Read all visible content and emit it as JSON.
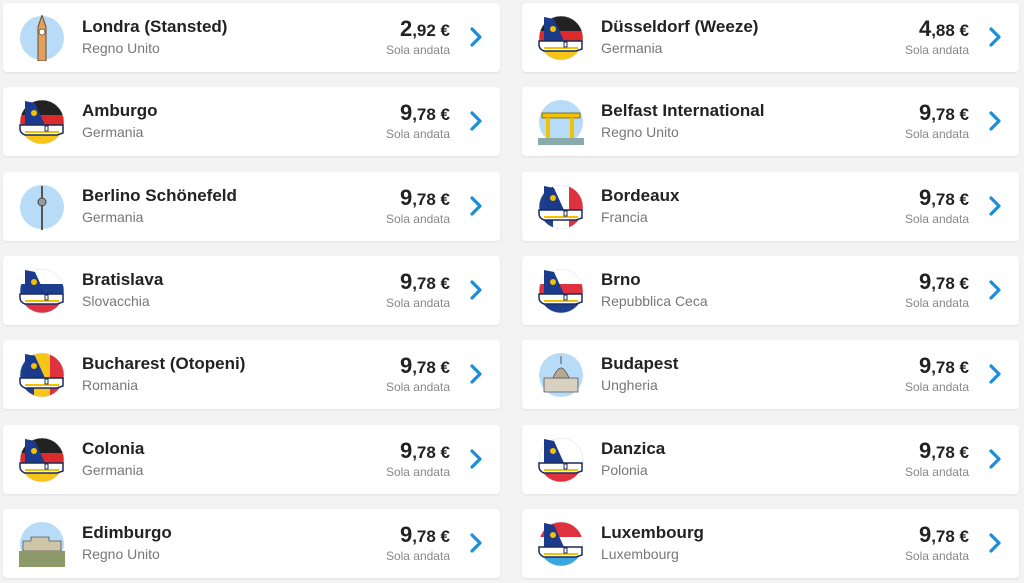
{
  "one_way_label": "Sola andata",
  "accent_color": "#1a8ddb",
  "destinations": [
    {
      "city": "Londra (Stansted)",
      "country": "Regno Unito",
      "price_int": "2",
      "price_dec": ",92 €",
      "icon": "big-ben-icon"
    },
    {
      "city": "Düsseldorf (Weeze)",
      "country": "Germania",
      "price_int": "4",
      "price_dec": ",88 €",
      "icon": "plane-tail-flag-icon",
      "flag_colors": [
        "#222222",
        "#dd2a2a",
        "#f5c518"
      ]
    },
    {
      "city": "Amburgo",
      "country": "Germania",
      "price_int": "9",
      "price_dec": ",78 €",
      "icon": "plane-tail-flag-icon",
      "flag_colors": [
        "#222222",
        "#dd2a2a",
        "#f5c518"
      ]
    },
    {
      "city": "Belfast International",
      "country": "Regno Unito",
      "price_int": "9",
      "price_dec": ",78 €",
      "icon": "harland-wolff-cranes-icon"
    },
    {
      "city": "Berlino Schönefeld",
      "country": "Germania",
      "price_int": "9",
      "price_dec": ",78 €",
      "icon": "tv-tower-icon"
    },
    {
      "city": "Bordeaux",
      "country": "Francia",
      "price_int": "9",
      "price_dec": ",78 €",
      "icon": "plane-tail-flag-icon",
      "flag_colors": [
        "#1d3f8f",
        "#ffffff",
        "#e0313e"
      ],
      "vertical": true
    },
    {
      "city": "Bratislava",
      "country": "Slovacchia",
      "price_int": "9",
      "price_dec": ",78 €",
      "icon": "plane-tail-flag-icon",
      "flag_colors": [
        "#ffffff",
        "#1d3f8f",
        "#e0313e"
      ]
    },
    {
      "city": "Brno",
      "country": "Repubblica Ceca",
      "price_int": "9",
      "price_dec": ",78 €",
      "icon": "plane-tail-flag-icon",
      "flag_colors": [
        "#ffffff",
        "#e0313e",
        "#1d3f8f"
      ]
    },
    {
      "city": "Bucharest (Otopeni)",
      "country": "Romania",
      "price_int": "9",
      "price_dec": ",78 €",
      "icon": "plane-tail-flag-icon",
      "flag_colors": [
        "#1d3f8f",
        "#f5c518",
        "#e0313e"
      ],
      "vertical": true
    },
    {
      "city": "Budapest",
      "country": "Ungheria",
      "price_int": "9",
      "price_dec": ",78 €",
      "icon": "parliament-icon"
    },
    {
      "city": "Colonia",
      "country": "Germania",
      "price_int": "9",
      "price_dec": ",78 €",
      "icon": "plane-tail-flag-icon",
      "flag_colors": [
        "#222222",
        "#dd2a2a",
        "#f5c518"
      ]
    },
    {
      "city": "Danzica",
      "country": "Polonia",
      "price_int": "9",
      "price_dec": ",78 €",
      "icon": "plane-tail-flag-icon",
      "flag_colors": [
        "#ffffff",
        "#ffffff",
        "#e0313e"
      ]
    },
    {
      "city": "Edimburgo",
      "country": "Regno Unito",
      "price_int": "9",
      "price_dec": ",78 €",
      "icon": "castle-icon"
    },
    {
      "city": "Luxembourg",
      "country": "Luxembourg",
      "price_int": "9",
      "price_dec": ",78 €",
      "icon": "plane-tail-flag-icon",
      "flag_colors": [
        "#e0313e",
        "#ffffff",
        "#3aa7e0"
      ]
    }
  ]
}
